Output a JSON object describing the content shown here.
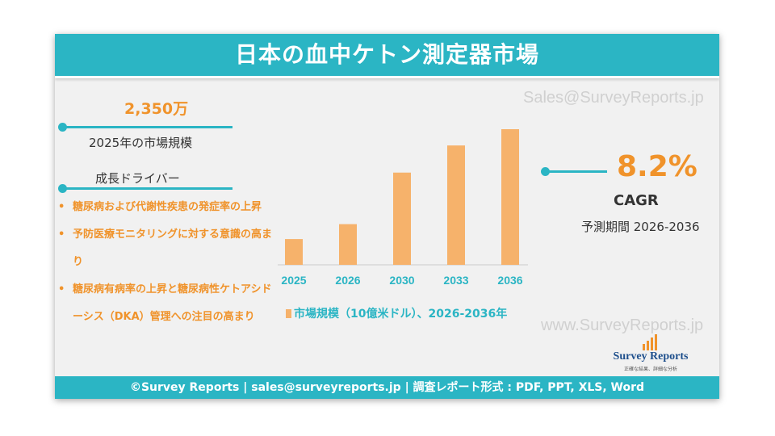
{
  "title": "日本の血中ケトン測定器市場",
  "watermark_top": "Sales@SurveyReports.jp",
  "watermark_bottom": "www.SurveyReports.jp",
  "market_size": {
    "value": "2,350万",
    "label": "2025年の市場規模"
  },
  "drivers": {
    "heading": "成長ドライバー",
    "items": [
      "糖尿病および代謝性疾患の発症率の上昇",
      "予防医療モニタリングに対する意識の高まり",
      "糖尿病有病率の上昇と糖尿病性ケトアシドーシス（DKA）管理への注目の高まり"
    ]
  },
  "cagr": {
    "value": "8.2%",
    "label": "CAGR",
    "period": "予測期間 2026-2036"
  },
  "logo": {
    "name": "Survey Reports",
    "tagline": "正確な結果、詳細な分析"
  },
  "footer": "©Survey Reports | sales@surveyreports.jp |  調査レポート形式 : PDF, PPT, XLS, Word",
  "colors": {
    "accent": "#2bb5c4",
    "bar": "#f6b26b",
    "highlight": "#f0932b"
  },
  "chart_data": {
    "type": "bar",
    "categories": [
      "2025",
      "2026",
      "2030",
      "2033",
      "2036"
    ],
    "values": [
      19,
      30,
      68,
      88,
      100
    ],
    "legend": "市場規模（10億米ドル）、2026-2036年",
    "title": "",
    "xlabel": "",
    "ylabel": "",
    "ylim": [
      0,
      100
    ]
  }
}
